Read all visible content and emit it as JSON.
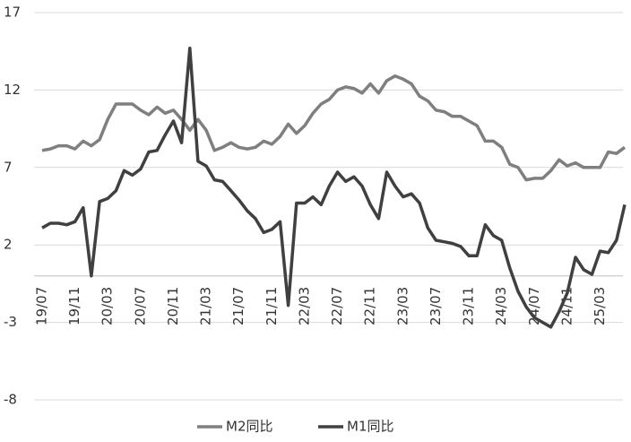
{
  "chart_data": {
    "type": "line",
    "categories": [
      "19/07",
      null,
      null,
      null,
      "19/11",
      null,
      null,
      null,
      "20/03",
      null,
      null,
      null,
      "20/07",
      null,
      null,
      null,
      "20/11",
      null,
      null,
      null,
      "21/03",
      null,
      null,
      null,
      "21/07",
      null,
      null,
      null,
      "21/11",
      null,
      null,
      null,
      "22/03",
      null,
      null,
      null,
      "22/07",
      null,
      null,
      null,
      "22/11",
      null,
      null,
      null,
      "23/03",
      null,
      null,
      null,
      "23/07",
      null,
      null,
      null,
      "23/11",
      null,
      null,
      null,
      "24/03",
      null,
      null,
      null,
      "24/07",
      null,
      null,
      null,
      "24/11",
      null,
      null,
      null,
      "25/03",
      null,
      null,
      null
    ],
    "series": [
      {
        "name": "M2同比",
        "color": "#7f7f7f",
        "values": [
          8.1,
          8.2,
          8.4,
          8.4,
          8.2,
          8.7,
          8.4,
          8.8,
          10.1,
          11.1,
          11.1,
          11.1,
          10.7,
          10.4,
          10.9,
          10.5,
          10.7,
          10.1,
          9.4,
          10.1,
          9.4,
          8.1,
          8.3,
          8.6,
          8.3,
          8.2,
          8.3,
          8.7,
          8.5,
          9.0,
          9.8,
          9.2,
          9.7,
          10.5,
          11.1,
          11.4,
          12.0,
          12.2,
          12.1,
          11.8,
          12.4,
          11.8,
          12.6,
          12.9,
          12.7,
          12.4,
          11.6,
          11.3,
          10.7,
          10.6,
          10.3,
          10.3,
          10.0,
          9.7,
          8.7,
          8.7,
          8.3,
          7.2,
          7.0,
          6.2,
          6.3,
          6.3,
          6.8,
          7.5,
          7.1,
          7.3,
          7.0,
          7.0,
          7.0,
          8.0,
          7.9,
          8.3
        ]
      },
      {
        "name": "M1同比",
        "color": "#404040",
        "values": [
          3.1,
          3.4,
          3.4,
          3.3,
          3.5,
          4.4,
          0.0,
          4.8,
          5.0,
          5.5,
          6.8,
          6.5,
          6.9,
          8.0,
          8.1,
          9.1,
          10.0,
          8.6,
          14.7,
          7.4,
          7.1,
          6.2,
          6.1,
          5.5,
          4.9,
          4.2,
          3.7,
          2.8,
          3.0,
          3.5,
          -1.9,
          4.7,
          4.7,
          5.1,
          4.6,
          5.8,
          6.7,
          6.1,
          6.4,
          5.8,
          4.6,
          3.7,
          6.7,
          5.8,
          5.1,
          5.3,
          4.7,
          3.1,
          2.3,
          2.2,
          2.1,
          1.9,
          1.3,
          1.3,
          3.3,
          2.6,
          2.3,
          0.5,
          -1.0,
          -2.0,
          -2.7,
          -3.0,
          -3.3,
          -2.3,
          -1.1,
          1.2,
          0.4,
          0.1,
          1.6,
          1.5,
          2.3,
          4.6
        ]
      }
    ],
    "ylim": [
      -8,
      17
    ],
    "yticks": [
      -8,
      -3,
      2,
      7,
      12,
      17
    ],
    "grid": true,
    "legend": "bottom"
  }
}
